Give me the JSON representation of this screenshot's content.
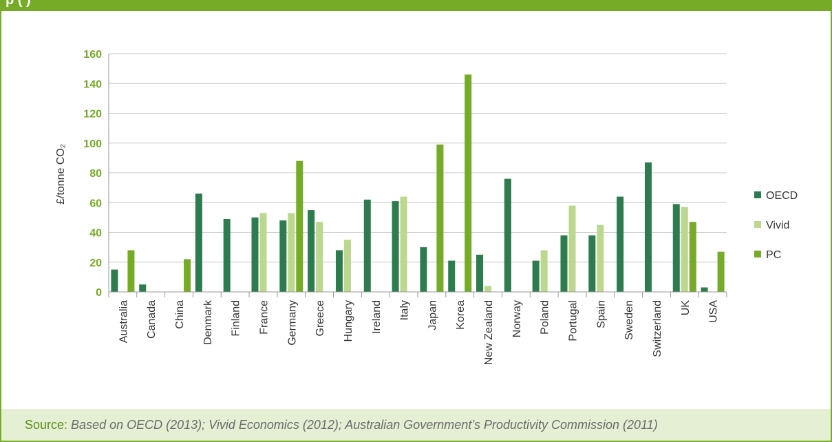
{
  "header": {
    "title": "p                     (       )"
  },
  "source": {
    "label": "Source:",
    "text": " Based on OECD (2013); Vivid Economics (2012); Australian Government’s Productivity Commission (2011)"
  },
  "colors": {
    "brand": "#76ab27",
    "source_bg": "#e4efd3",
    "series": [
      "#2e7b4f",
      "#bcd88e",
      "#76ab27"
    ]
  },
  "chart_data": {
    "type": "bar",
    "title": "",
    "xlabel": "",
    "ylabel": "£/tonne CO₂",
    "ylim": [
      0,
      160
    ],
    "yticks": [
      0,
      20,
      40,
      60,
      80,
      100,
      120,
      140,
      160
    ],
    "grid": true,
    "legend_position": "right",
    "categories": [
      "Australia",
      "Canada",
      "China",
      "Denmark",
      "Finland",
      "France",
      "Germany",
      "Greece",
      "Hungary",
      "Ireland",
      "Italy",
      "Japan",
      "Korea",
      "New Zealand",
      "Norway",
      "Poland",
      "Portugal",
      "Spain",
      "Sweden",
      "Switzerland",
      "UK",
      "USA"
    ],
    "series": [
      {
        "name": "OECD",
        "color": "#2e7b4f",
        "values": [
          15,
          5,
          0,
          66,
          49,
          50,
          48,
          55,
          28,
          62,
          61,
          30,
          21,
          25,
          76,
          21,
          38,
          38,
          64,
          87,
          59,
          3
        ]
      },
      {
        "name": "Vivid",
        "color": "#bcd88e",
        "values": [
          0,
          0,
          0,
          0,
          0,
          53,
          53,
          47,
          35,
          0,
          64,
          0,
          0,
          4,
          0,
          28,
          58,
          45,
          0,
          0,
          57,
          0
        ]
      },
      {
        "name": "PC",
        "color": "#76ab27",
        "values": [
          28,
          0,
          22,
          0,
          0,
          0,
          88,
          0,
          0,
          0,
          0,
          99,
          146,
          0,
          0,
          0,
          0,
          0,
          0,
          0,
          47,
          27
        ]
      }
    ]
  }
}
